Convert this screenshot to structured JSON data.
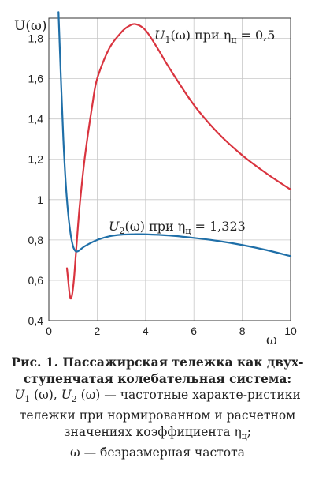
{
  "chart_data": {
    "type": "line",
    "xlabel": "ω",
    "ylabel": "U(ω)",
    "xlim": [
      0,
      10
    ],
    "ylim": [
      0.4,
      1.9
    ],
    "xticks": [
      "0",
      "2",
      "4",
      "6",
      "8",
      "10"
    ],
    "yticks": [
      "0,4",
      "0,6",
      "0,8",
      "1",
      "1,2",
      "1,4",
      "1,6",
      "1,8"
    ],
    "grid": true,
    "series": [
      {
        "name": "U1(ω) при ηц = 0,5",
        "name_parts": {
          "fn": "U",
          "sub": "1",
          "arg": "(ω) при η",
          "eta_sub": "ц",
          "value": " = 0,5"
        },
        "color": "#d9343f",
        "x": [
          0.75,
          0.8,
          0.85,
          0.9,
          0.95,
          1.0,
          1.05,
          1.1,
          1.2,
          1.3,
          1.5,
          1.8,
          2.0,
          2.5,
          3.0,
          3.3,
          3.6,
          4.0,
          4.5,
          5.0,
          6.0,
          7.0,
          8.0,
          9.0,
          10.0
        ],
        "values": [
          0.66,
          0.6,
          0.54,
          0.51,
          0.52,
          0.56,
          0.62,
          0.7,
          0.86,
          1.0,
          1.22,
          1.47,
          1.6,
          1.75,
          1.83,
          1.86,
          1.87,
          1.84,
          1.75,
          1.65,
          1.47,
          1.33,
          1.22,
          1.13,
          1.05
        ]
      },
      {
        "name": "U2(ω) при ηц = 1,323",
        "name_parts": {
          "fn": "U",
          "sub": "2",
          "arg": "(ω) при η",
          "eta_sub": "ц",
          "value": " = 1,323"
        },
        "color": "#1f6fa8",
        "x": [
          0.4,
          0.5,
          0.6,
          0.7,
          0.8,
          0.9,
          1.0,
          1.1,
          1.2,
          1.3,
          1.5,
          2.0,
          2.5,
          3.0,
          3.5,
          4.0,
          5.0,
          6.0,
          7.0,
          8.0,
          9.0,
          10.0
        ],
        "values": [
          1.93,
          1.6,
          1.3,
          1.08,
          0.93,
          0.83,
          0.77,
          0.745,
          0.744,
          0.752,
          0.77,
          0.8,
          0.818,
          0.826,
          0.828,
          0.828,
          0.822,
          0.81,
          0.795,
          0.775,
          0.75,
          0.72
        ]
      }
    ]
  },
  "caption": {
    "title": "Рис. 1. Пассажирская тележка как двух­ступенчатая колебательная система:",
    "line1_a": "U",
    "line1_a_sub": "1",
    "line1_b": " (ω), ",
    "line1_c": "U",
    "line1_c_sub": "2",
    "line1_d": " (ω) — частотные характе-ристики тележки при нормированном и расчетном значениях коэффициента η",
    "line1_eta_sub": "ц",
    "line1_e": ";",
    "line2": "ω — безразмерная частота"
  }
}
